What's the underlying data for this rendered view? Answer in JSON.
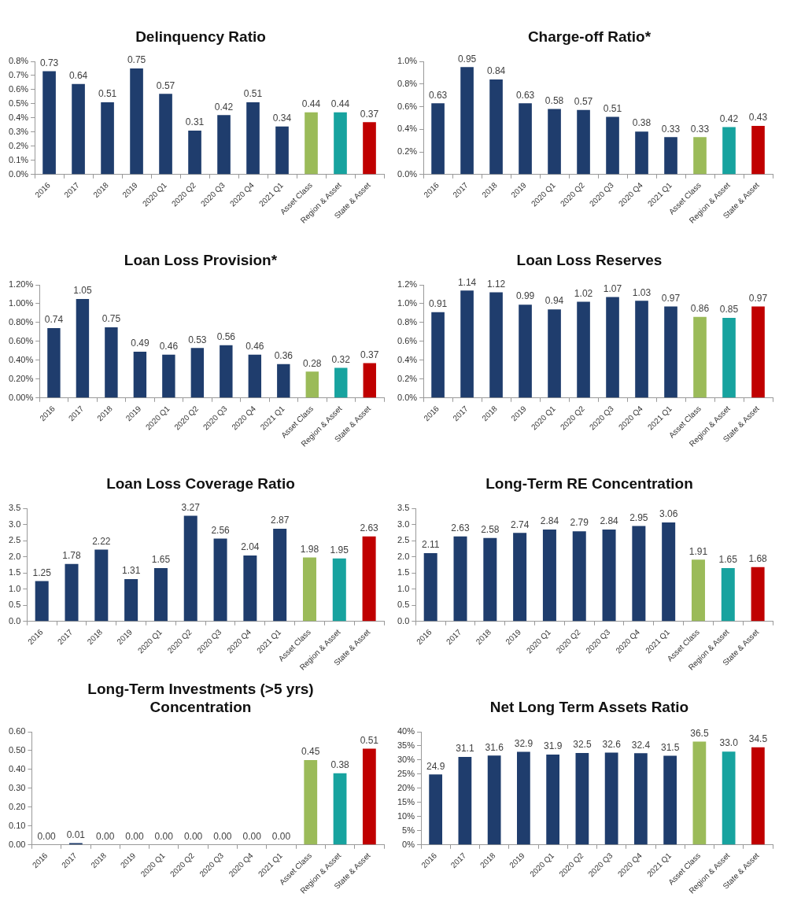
{
  "chart_data": [
    {
      "type": "bar",
      "title": "Delinquency Ratio",
      "categories": [
        "2016",
        "2017",
        "2018",
        "2019",
        "2020 Q1",
        "2020 Q2",
        "2020 Q3",
        "2020 Q4",
        "2021 Q1",
        "Asset Class",
        "Region & Asset",
        "State & Asset"
      ],
      "values": [
        0.73,
        0.64,
        0.51,
        0.75,
        0.57,
        0.31,
        0.42,
        0.51,
        0.34,
        0.44,
        0.44,
        0.37
      ],
      "value_labels": [
        "0.73",
        "0.64",
        "0.51",
        "0.75",
        "0.57",
        "0.31",
        "0.42",
        "0.51",
        "0.34",
        "0.44",
        "0.44",
        "0.37"
      ],
      "colors": [
        "#1f3d6d",
        "#1f3d6d",
        "#1f3d6d",
        "#1f3d6d",
        "#1f3d6d",
        "#1f3d6d",
        "#1f3d6d",
        "#1f3d6d",
        "#1f3d6d",
        "#9bbb59",
        "#17a39f",
        "#c00000"
      ],
      "ylim": [
        0,
        0.8
      ],
      "yticks": [
        {
          "value": 0,
          "label": "0.0%"
        },
        {
          "value": 0.1,
          "label": "0.1%"
        },
        {
          "value": 0.2,
          "label": "0.2%"
        },
        {
          "value": 0.3,
          "label": "0.3%"
        },
        {
          "value": 0.4,
          "label": "0.4%"
        },
        {
          "value": 0.5,
          "label": "0.5%"
        },
        {
          "value": 0.6,
          "label": "0.6%"
        },
        {
          "value": 0.7,
          "label": "0.7%"
        },
        {
          "value": 0.8,
          "label": "0.8%"
        }
      ]
    },
    {
      "type": "bar",
      "title": "Charge-off Ratio*",
      "categories": [
        "2016",
        "2017",
        "2018",
        "2019",
        "2020 Q1",
        "2020 Q2",
        "2020 Q3",
        "2020 Q4",
        "2021 Q1",
        "Asset Class",
        "Region & Asset",
        "State & Asset"
      ],
      "values": [
        0.63,
        0.95,
        0.84,
        0.63,
        0.58,
        0.57,
        0.51,
        0.38,
        0.33,
        0.33,
        0.42,
        0.43
      ],
      "value_labels": [
        "0.63",
        "0.95",
        "0.84",
        "0.63",
        "0.58",
        "0.57",
        "0.51",
        "0.38",
        "0.33",
        "0.33",
        "0.42",
        "0.43"
      ],
      "colors": [
        "#1f3d6d",
        "#1f3d6d",
        "#1f3d6d",
        "#1f3d6d",
        "#1f3d6d",
        "#1f3d6d",
        "#1f3d6d",
        "#1f3d6d",
        "#1f3d6d",
        "#9bbb59",
        "#17a39f",
        "#c00000"
      ],
      "ylim": [
        0,
        1.0
      ],
      "yticks": [
        {
          "value": 0,
          "label": "0.0%"
        },
        {
          "value": 0.2,
          "label": "0.2%"
        },
        {
          "value": 0.4,
          "label": "0.4%"
        },
        {
          "value": 0.6,
          "label": "0.6%"
        },
        {
          "value": 0.8,
          "label": "0.8%"
        },
        {
          "value": 1.0,
          "label": "1.0%"
        }
      ]
    },
    {
      "type": "bar",
      "title": "Loan Loss Provision*",
      "categories": [
        "2016",
        "2017",
        "2018",
        "2019",
        "2020 Q1",
        "2020 Q2",
        "2020 Q3",
        "2020 Q4",
        "2021 Q1",
        "Asset Class",
        "Region & Asset",
        "State & Asset"
      ],
      "values": [
        0.74,
        1.05,
        0.75,
        0.49,
        0.46,
        0.53,
        0.56,
        0.46,
        0.36,
        0.28,
        0.32,
        0.37
      ],
      "value_labels": [
        "0.74",
        "1.05",
        "0.75",
        "0.49",
        "0.46",
        "0.53",
        "0.56",
        "0.46",
        "0.36",
        "0.28",
        "0.32",
        "0.37"
      ],
      "colors": [
        "#1f3d6d",
        "#1f3d6d",
        "#1f3d6d",
        "#1f3d6d",
        "#1f3d6d",
        "#1f3d6d",
        "#1f3d6d",
        "#1f3d6d",
        "#1f3d6d",
        "#9bbb59",
        "#17a39f",
        "#c00000"
      ],
      "ylim": [
        0,
        1.2
      ],
      "yticks": [
        {
          "value": 0,
          "label": "0.00%"
        },
        {
          "value": 0.2,
          "label": "0.20%"
        },
        {
          "value": 0.4,
          "label": "0.40%"
        },
        {
          "value": 0.6,
          "label": "0.60%"
        },
        {
          "value": 0.8,
          "label": "0.80%"
        },
        {
          "value": 1.0,
          "label": "1.00%"
        },
        {
          "value": 1.2,
          "label": "1.20%"
        }
      ]
    },
    {
      "type": "bar",
      "title": "Loan Loss Reserves",
      "categories": [
        "2016",
        "2017",
        "2018",
        "2019",
        "2020 Q1",
        "2020 Q2",
        "2020 Q3",
        "2020 Q4",
        "2021 Q1",
        "Asset Class",
        "Region & Asset",
        "State & Asset"
      ],
      "values": [
        0.91,
        1.14,
        1.12,
        0.99,
        0.94,
        1.02,
        1.07,
        1.03,
        0.97,
        0.86,
        0.85,
        0.97
      ],
      "value_labels": [
        "0.91",
        "1.14",
        "1.12",
        "0.99",
        "0.94",
        "1.02",
        "1.07",
        "1.03",
        "0.97",
        "0.86",
        "0.85",
        "0.97"
      ],
      "colors": [
        "#1f3d6d",
        "#1f3d6d",
        "#1f3d6d",
        "#1f3d6d",
        "#1f3d6d",
        "#1f3d6d",
        "#1f3d6d",
        "#1f3d6d",
        "#1f3d6d",
        "#9bbb59",
        "#17a39f",
        "#c00000"
      ],
      "ylim": [
        0,
        1.2
      ],
      "yticks": [
        {
          "value": 0,
          "label": "0.0%"
        },
        {
          "value": 0.2,
          "label": "0.2%"
        },
        {
          "value": 0.4,
          "label": "0.4%"
        },
        {
          "value": 0.6,
          "label": "0.6%"
        },
        {
          "value": 0.8,
          "label": "0.8%"
        },
        {
          "value": 1.0,
          "label": "1.0%"
        },
        {
          "value": 1.2,
          "label": "1.2%"
        }
      ]
    },
    {
      "type": "bar",
      "title": "Loan Loss Coverage Ratio",
      "categories": [
        "2016",
        "2017",
        "2018",
        "2019",
        "2020 Q1",
        "2020 Q2",
        "2020 Q3",
        "2020 Q4",
        "2021 Q1",
        "Asset Class",
        "Region & Asset",
        "State & Asset"
      ],
      "values": [
        1.25,
        1.78,
        2.22,
        1.31,
        1.65,
        3.27,
        2.56,
        2.04,
        2.87,
        1.98,
        1.95,
        2.63
      ],
      "value_labels": [
        "1.25",
        "1.78",
        "2.22",
        "1.31",
        "1.65",
        "3.27",
        "2.56",
        "2.04",
        "2.87",
        "1.98",
        "1.95",
        "2.63"
      ],
      "colors": [
        "#1f3d6d",
        "#1f3d6d",
        "#1f3d6d",
        "#1f3d6d",
        "#1f3d6d",
        "#1f3d6d",
        "#1f3d6d",
        "#1f3d6d",
        "#1f3d6d",
        "#9bbb59",
        "#17a39f",
        "#c00000"
      ],
      "ylim": [
        0,
        3.5
      ],
      "yticks": [
        {
          "value": 0,
          "label": "0.0"
        },
        {
          "value": 0.5,
          "label": "0.5"
        },
        {
          "value": 1,
          "label": "1.0"
        },
        {
          "value": 1.5,
          "label": "1.5"
        },
        {
          "value": 2,
          "label": "2.0"
        },
        {
          "value": 2.5,
          "label": "2.5"
        },
        {
          "value": 3,
          "label": "3.0"
        },
        {
          "value": 3.5,
          "label": "3.5"
        }
      ]
    },
    {
      "type": "bar",
      "title": "Long-Term RE Concentration",
      "categories": [
        "2016",
        "2017",
        "2018",
        "2019",
        "2020 Q1",
        "2020 Q2",
        "2020 Q3",
        "2020 Q4",
        "2021 Q1",
        "Asset Class",
        "Region & Asset",
        "State & Asset"
      ],
      "values": [
        2.11,
        2.63,
        2.58,
        2.74,
        2.84,
        2.79,
        2.84,
        2.95,
        3.06,
        1.91,
        1.65,
        1.68
      ],
      "value_labels": [
        "2.11",
        "2.63",
        "2.58",
        "2.74",
        "2.84",
        "2.79",
        "2.84",
        "2.95",
        "3.06",
        "1.91",
        "1.65",
        "1.68"
      ],
      "colors": [
        "#1f3d6d",
        "#1f3d6d",
        "#1f3d6d",
        "#1f3d6d",
        "#1f3d6d",
        "#1f3d6d",
        "#1f3d6d",
        "#1f3d6d",
        "#1f3d6d",
        "#9bbb59",
        "#17a39f",
        "#c00000"
      ],
      "ylim": [
        0,
        3.5
      ],
      "yticks": [
        {
          "value": 0,
          "label": "0.0"
        },
        {
          "value": 0.5,
          "label": "0.5"
        },
        {
          "value": 1,
          "label": "1.0"
        },
        {
          "value": 1.5,
          "label": "1.5"
        },
        {
          "value": 2,
          "label": "2.0"
        },
        {
          "value": 2.5,
          "label": "2.5"
        },
        {
          "value": 3,
          "label": "3.0"
        },
        {
          "value": 3.5,
          "label": "3.5"
        }
      ]
    },
    {
      "type": "bar",
      "title": "Long-Term Investments (>5 yrs) Concentration",
      "categories": [
        "2016",
        "2017",
        "2018",
        "2019",
        "2020 Q1",
        "2020 Q2",
        "2020 Q3",
        "2020 Q4",
        "2021 Q1",
        "Asset Class",
        "Region & Asset",
        "State & Asset"
      ],
      "values": [
        0,
        0.01,
        0,
        0,
        0,
        0,
        0,
        0,
        0,
        0.45,
        0.38,
        0.51
      ],
      "value_labels": [
        "0.00",
        "0.01",
        "0.00",
        "0.00",
        "0.00",
        "0.00",
        "0.00",
        "0.00",
        "0.00",
        "0.45",
        "0.38",
        "0.51"
      ],
      "colors": [
        "#1f3d6d",
        "#1f3d6d",
        "#1f3d6d",
        "#1f3d6d",
        "#1f3d6d",
        "#1f3d6d",
        "#1f3d6d",
        "#1f3d6d",
        "#1f3d6d",
        "#9bbb59",
        "#17a39f",
        "#c00000"
      ],
      "ylim": [
        0,
        0.6
      ],
      "yticks": [
        {
          "value": 0,
          "label": "0.00"
        },
        {
          "value": 0.1,
          "label": "0.10"
        },
        {
          "value": 0.2,
          "label": "0.20"
        },
        {
          "value": 0.3,
          "label": "0.30"
        },
        {
          "value": 0.4,
          "label": "0.40"
        },
        {
          "value": 0.5,
          "label": "0.50"
        },
        {
          "value": 0.6,
          "label": "0.60"
        }
      ]
    },
    {
      "type": "bar",
      "title": "Net Long Term Assets Ratio",
      "categories": [
        "2016",
        "2017",
        "2018",
        "2019",
        "2020 Q1",
        "2020 Q2",
        "2020 Q3",
        "2020 Q4",
        "2021 Q1",
        "Asset Class",
        "Region & Asset",
        "State & Asset"
      ],
      "values": [
        24.9,
        31.1,
        31.6,
        32.9,
        31.9,
        32.5,
        32.6,
        32.4,
        31.5,
        36.5,
        33.0,
        34.5
      ],
      "value_labels": [
        "24.9",
        "31.1",
        "31.6",
        "32.9",
        "31.9",
        "32.5",
        "32.6",
        "32.4",
        "31.5",
        "36.5",
        "33.0",
        "34.5"
      ],
      "colors": [
        "#1f3d6d",
        "#1f3d6d",
        "#1f3d6d",
        "#1f3d6d",
        "#1f3d6d",
        "#1f3d6d",
        "#1f3d6d",
        "#1f3d6d",
        "#1f3d6d",
        "#9bbb59",
        "#17a39f",
        "#c00000"
      ],
      "ylim": [
        0,
        40
      ],
      "yticks": [
        {
          "value": 0,
          "label": "0%"
        },
        {
          "value": 5,
          "label": "5%"
        },
        {
          "value": 10,
          "label": "10%"
        },
        {
          "value": 15,
          "label": "15%"
        },
        {
          "value": 20,
          "label": "20%"
        },
        {
          "value": 25,
          "label": "25%"
        },
        {
          "value": 30,
          "label": "30%"
        },
        {
          "value": 35,
          "label": "35%"
        },
        {
          "value": 40,
          "label": "40%"
        }
      ]
    }
  ]
}
